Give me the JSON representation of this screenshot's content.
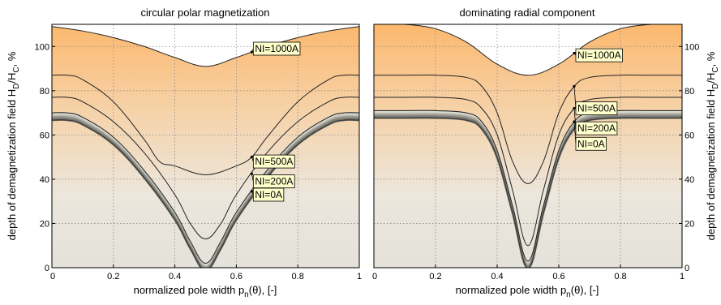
{
  "chart_data": [
    {
      "type": "area",
      "title": "circular polar magnetization",
      "xlabel": "normalized pole width p_n(θ), [-]",
      "ylabel": "",
      "xlim": [
        0,
        1
      ],
      "ylim": [
        0,
        110
      ],
      "x_ticks": [
        "0",
        "0.2",
        "0.4",
        "0.6",
        "0.8",
        "1"
      ],
      "y_ticks": [
        "0",
        "20",
        "40",
        "60",
        "80",
        "100"
      ],
      "grid": true,
      "series": [
        {
          "name": "NI=1000A",
          "x": [
            0,
            0.1,
            0.2,
            0.3,
            0.4,
            0.5,
            0.6,
            0.7,
            0.8,
            0.9,
            1.0
          ],
          "y": [
            109,
            107,
            104,
            100,
            95,
            91,
            95,
            100,
            104,
            107,
            109
          ]
        },
        {
          "name": "NI=500A",
          "x": [
            0,
            0.05,
            0.1,
            0.2,
            0.3,
            0.35,
            0.4,
            0.5,
            0.6,
            0.65,
            0.7,
            0.8,
            0.9,
            0.95,
            1.0
          ],
          "y": [
            87,
            87,
            85,
            75,
            58,
            48,
            46,
            42,
            46,
            50,
            59,
            75,
            85,
            87,
            87
          ]
        },
        {
          "name": "NI=200A",
          "x": [
            0,
            0.05,
            0.1,
            0.2,
            0.3,
            0.4,
            0.45,
            0.5,
            0.55,
            0.6,
            0.7,
            0.8,
            0.9,
            0.95,
            1.0
          ],
          "y": [
            77,
            77,
            75,
            66,
            52,
            33,
            20,
            13,
            20,
            33,
            52,
            66,
            75,
            77,
            77
          ]
        },
        {
          "name": "NI=0A",
          "x": [
            0,
            0.05,
            0.1,
            0.2,
            0.3,
            0.4,
            0.45,
            0.5,
            0.55,
            0.6,
            0.7,
            0.8,
            0.9,
            0.95,
            1.0
          ],
          "y": [
            70,
            70,
            68,
            59,
            44,
            25,
            12,
            2,
            12,
            25,
            44,
            59,
            68,
            70,
            70
          ]
        }
      ],
      "annotations": [
        {
          "text": "NI=1000A",
          "series": "NI=1000A",
          "x": 0.65,
          "y": 99
        },
        {
          "text": "NI=500A",
          "series": "NI=500A",
          "x": 0.65,
          "y": 48
        },
        {
          "text": "NI=200A",
          "series": "NI=200A",
          "x": 0.65,
          "y": 39
        },
        {
          "text": "NI=0A",
          "series": "NI=0A",
          "x": 0.65,
          "y": 33
        }
      ]
    },
    {
      "type": "area",
      "title": "dominating radial component",
      "xlabel": "normalized pole width p_n(θ), [-]",
      "ylabel": "depth of demagnetization field H_D/H_C, %",
      "xlim": [
        0,
        1
      ],
      "ylim": [
        0,
        110
      ],
      "x_ticks": [
        "0",
        "0.2",
        "0.4",
        "0.6",
        "0.8",
        "1"
      ],
      "y_ticks": [
        "0",
        "20",
        "40",
        "60",
        "80",
        "100"
      ],
      "grid": true,
      "series": [
        {
          "name": "NI=1000A",
          "x": [
            0,
            0.05,
            0.1,
            0.2,
            0.3,
            0.4,
            0.5,
            0.6,
            0.7,
            0.8,
            0.9,
            0.95,
            1.0
          ],
          "y": [
            110,
            110,
            110,
            108,
            102,
            92,
            87,
            92,
            102,
            108,
            110,
            110,
            110
          ]
        },
        {
          "name": "NI=500A",
          "x": [
            0,
            0.1,
            0.2,
            0.3,
            0.35,
            0.4,
            0.45,
            0.5,
            0.55,
            0.6,
            0.65,
            0.7,
            0.8,
            0.9,
            1.0
          ],
          "y": [
            87,
            87,
            87,
            86,
            82,
            70,
            48,
            38,
            48,
            70,
            82,
            86,
            87,
            87,
            87
          ]
        },
        {
          "name": "NI=200A",
          "x": [
            0,
            0.1,
            0.2,
            0.3,
            0.35,
            0.4,
            0.45,
            0.5,
            0.55,
            0.6,
            0.65,
            0.7,
            0.8,
            0.9,
            1.0
          ],
          "y": [
            77,
            77,
            77,
            76,
            72,
            60,
            35,
            10,
            35,
            60,
            72,
            76,
            77,
            77,
            77
          ]
        },
        {
          "name": "NI=0A",
          "x": [
            0,
            0.1,
            0.2,
            0.3,
            0.35,
            0.4,
            0.45,
            0.5,
            0.55,
            0.6,
            0.65,
            0.7,
            0.8,
            0.9,
            1.0
          ],
          "y": [
            71,
            71,
            71,
            70,
            66,
            53,
            28,
            3,
            28,
            53,
            66,
            70,
            71,
            71,
            71
          ]
        }
      ],
      "annotations": [
        {
          "text": "NI=1000A",
          "series": "NI=1000A",
          "x": 0.65,
          "y": 96
        },
        {
          "text": "NI=500A",
          "series": "NI=500A",
          "x": 0.65,
          "y": 72
        },
        {
          "text": "NI=200A",
          "series": "NI=200A",
          "x": 0.65,
          "y": 63
        },
        {
          "text": "NI=0A",
          "series": "NI=0A",
          "x": 0.65,
          "y": 56
        }
      ]
    }
  ],
  "colors": {
    "fill_top": "#fcb86e",
    "fill_mid": "#ece6dc",
    "band_dark": "#5e5e58",
    "band_light": "#e2e2da",
    "outline": "#1a1a1a",
    "grid": "#9a9a9a",
    "callout_bg": "#ffffcc"
  }
}
